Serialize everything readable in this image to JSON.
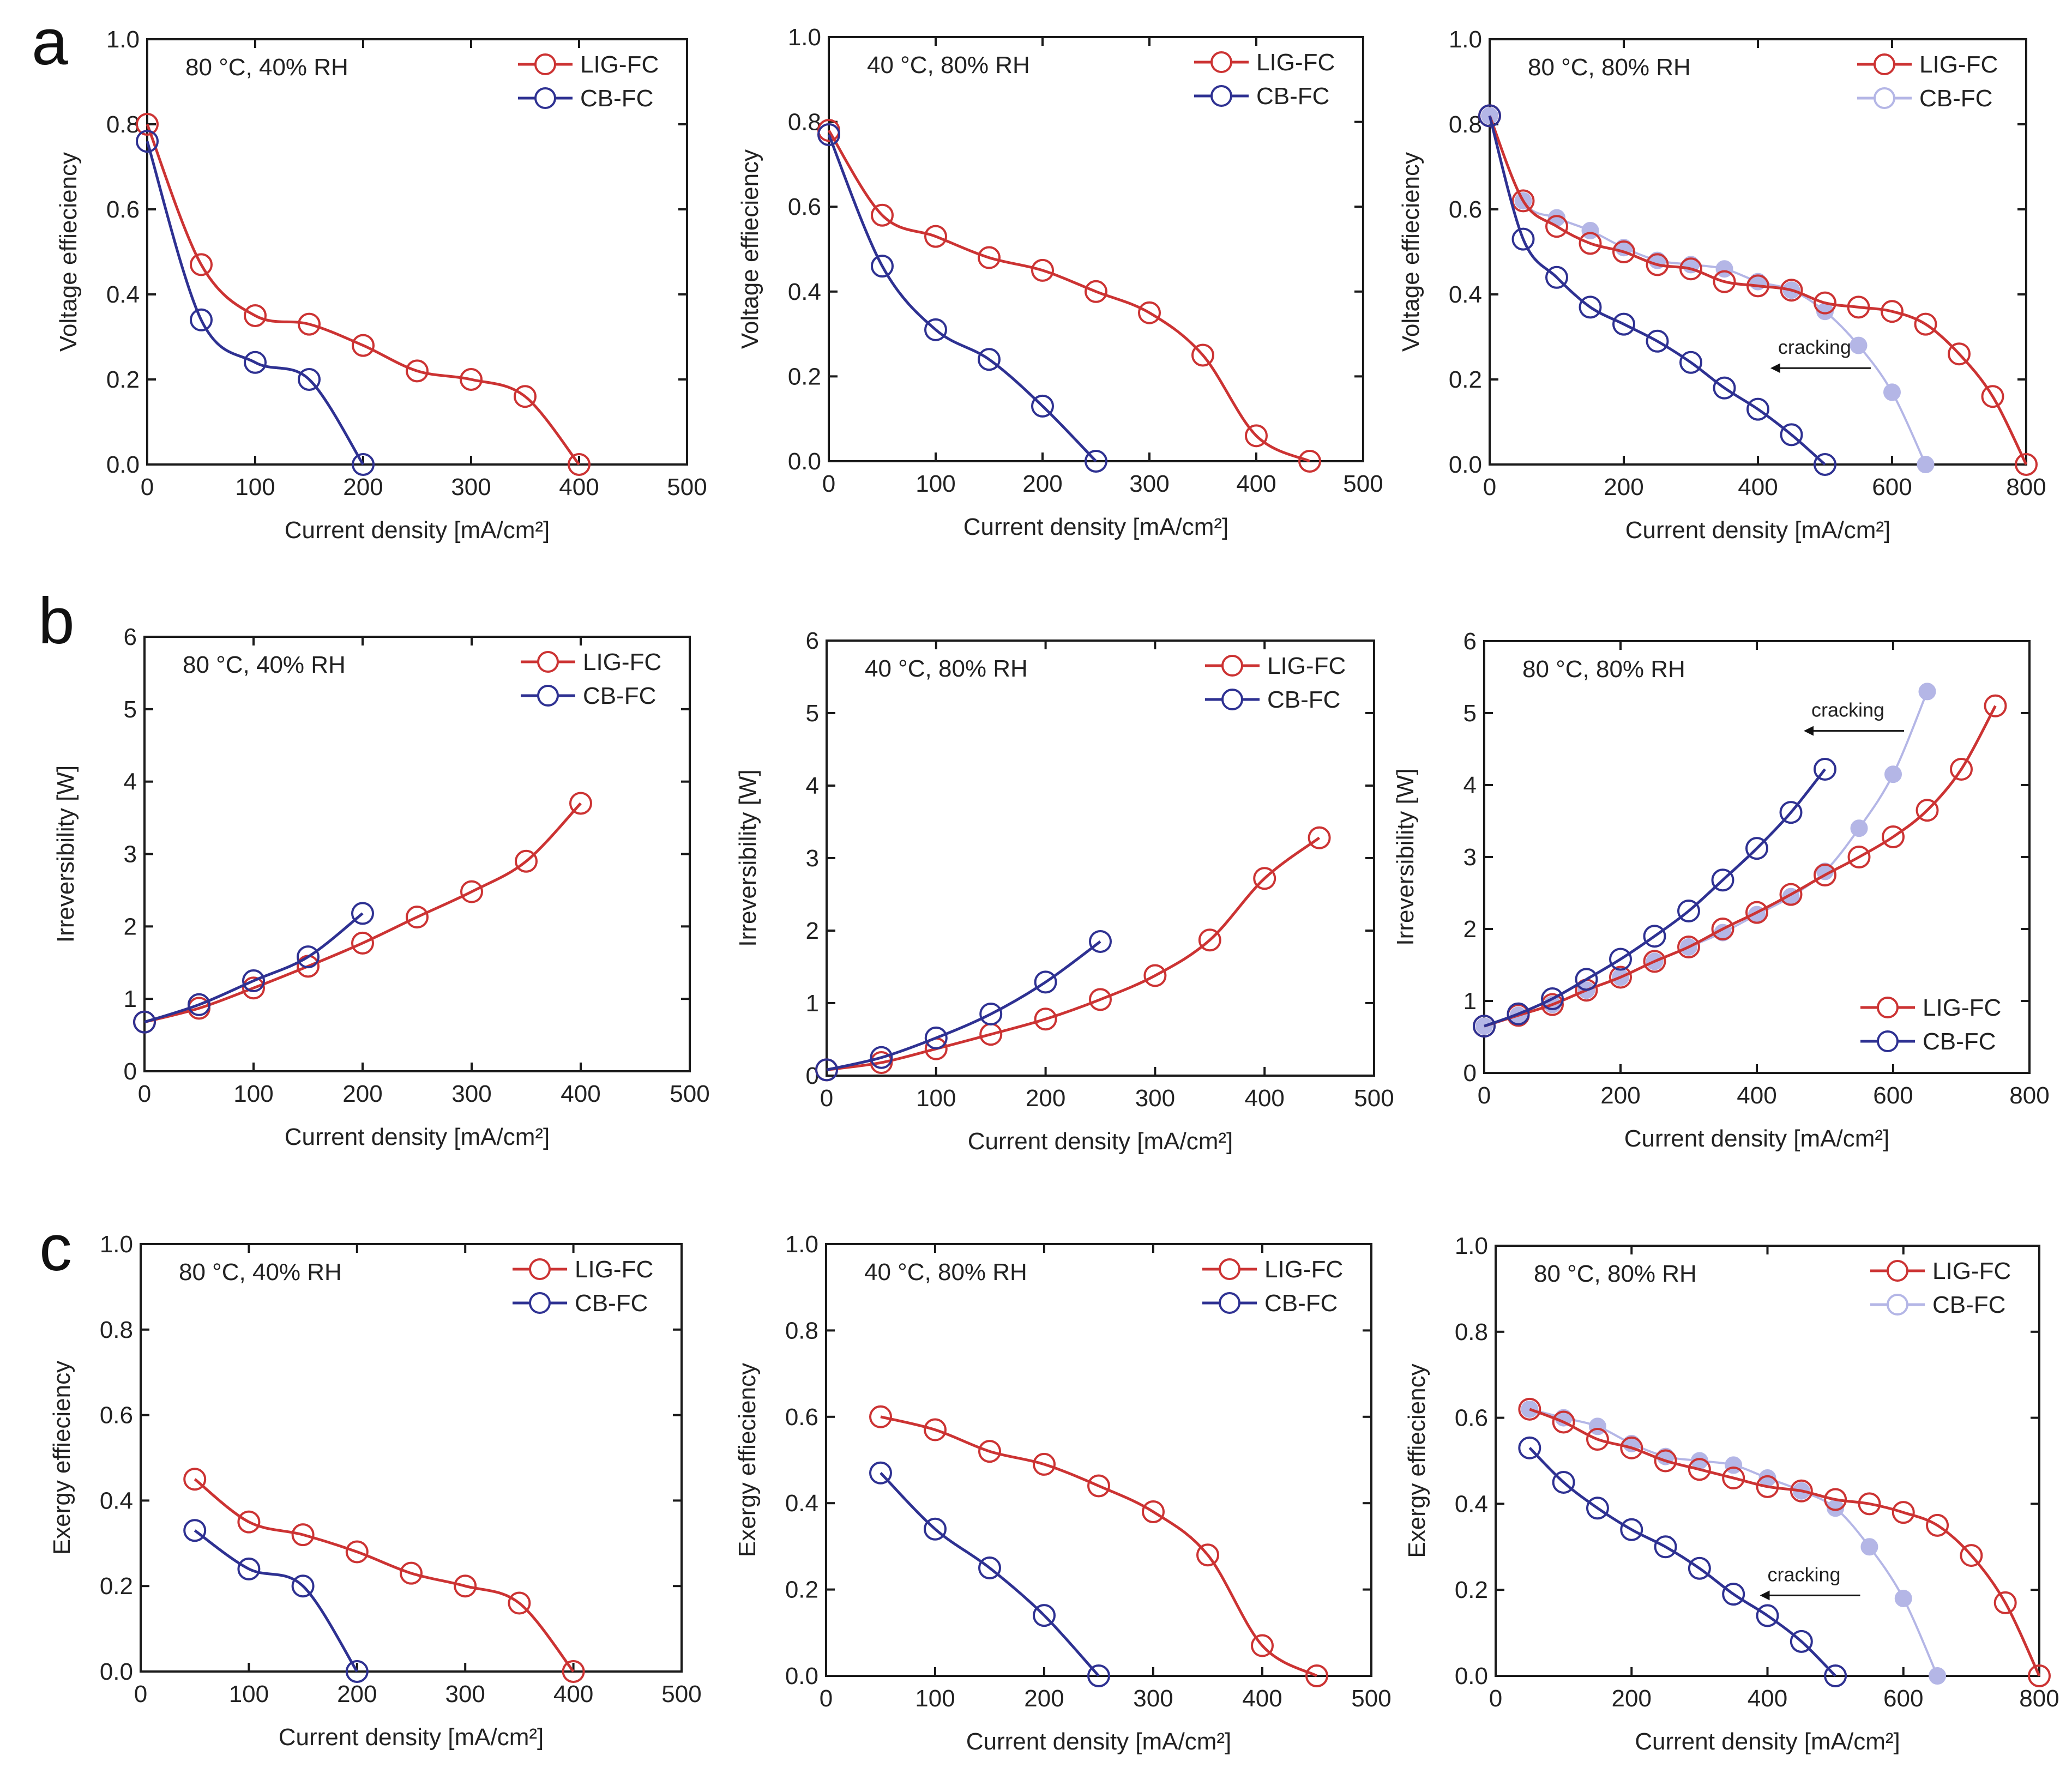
{
  "figure": {
    "row_letters": [
      "a",
      "b",
      "c"
    ],
    "colors": {
      "LIG-FC": "#cc3333",
      "CB-FC": "#2e3192",
      "CB-FC-faded": "#b4b6e6",
      "axis": "#1a1a1a"
    }
  },
  "chart_data": [
    {
      "id": "a1",
      "type": "line",
      "row": "a",
      "condition_label": "80 °C, 40% RH",
      "xlabel": "Current density [mA/cm²]",
      "ylabel": "Voltage effieciency",
      "xlim": [
        0,
        500
      ],
      "ylim": [
        0,
        1.0
      ],
      "xticks": [
        0,
        100,
        200,
        300,
        400,
        500
      ],
      "yticks": [
        0.0,
        0.2,
        0.4,
        0.6,
        0.8,
        1.0
      ],
      "ydec": 1,
      "legend": {
        "entries": [
          "LIG-FC",
          "CB-FC"
        ],
        "position": "top-right"
      },
      "series": [
        {
          "name": "LIG-FC",
          "x": [
            0,
            50,
            100,
            150,
            200,
            250,
            300,
            350,
            400
          ],
          "y": [
            0.8,
            0.47,
            0.35,
            0.33,
            0.28,
            0.22,
            0.2,
            0.16,
            0.0
          ]
        },
        {
          "name": "CB-FC",
          "x": [
            0,
            50,
            100,
            150,
            200
          ],
          "y": [
            0.76,
            0.34,
            0.24,
            0.2,
            0.0
          ]
        }
      ]
    },
    {
      "id": "a2",
      "type": "line",
      "row": "a",
      "condition_label": "40 °C, 80% RH",
      "xlabel": "Current density [mA/cm²]",
      "ylabel": "Voltage effieciency",
      "xlim": [
        0,
        500
      ],
      "ylim": [
        0,
        1.0
      ],
      "xticks": [
        0,
        100,
        200,
        300,
        400,
        500
      ],
      "yticks": [
        0.0,
        0.2,
        0.4,
        0.6,
        0.8,
        1.0
      ],
      "ydec": 1,
      "legend": {
        "entries": [
          "LIG-FC",
          "CB-FC"
        ],
        "position": "top-right"
      },
      "series": [
        {
          "name": "LIG-FC",
          "x": [
            0,
            50,
            100,
            150,
            200,
            250,
            300,
            350,
            400,
            450
          ],
          "y": [
            0.78,
            0.58,
            0.53,
            0.48,
            0.45,
            0.4,
            0.35,
            0.25,
            0.06,
            0.0
          ]
        },
        {
          "name": "CB-FC",
          "x": [
            0,
            50,
            100,
            150,
            200,
            250
          ],
          "y": [
            0.77,
            0.46,
            0.31,
            0.24,
            0.13,
            0.0
          ]
        }
      ]
    },
    {
      "id": "a3",
      "type": "line",
      "row": "a",
      "condition_label": "80 °C, 80% RH",
      "xlabel": "Current density [mA/cm²]",
      "ylabel": "Voltage effieciency",
      "xlim": [
        0,
        800
      ],
      "ylim": [
        0,
        1.0
      ],
      "xticks": [
        0,
        200,
        400,
        600,
        800
      ],
      "yticks": [
        0.0,
        0.2,
        0.4,
        0.6,
        0.8,
        1.0
      ],
      "ydec": 1,
      "legend": {
        "entries": [
          "LIG-FC",
          "CB-FC"
        ],
        "position": "top-right"
      },
      "annotation": {
        "text": "cracking",
        "arrow": "left"
      },
      "series": [
        {
          "name": "LIG-FC",
          "x": [
            0,
            50,
            100,
            150,
            200,
            250,
            300,
            350,
            400,
            450,
            500,
            550,
            600,
            650,
            700,
            750,
            800
          ],
          "y": [
            0.82,
            0.62,
            0.56,
            0.52,
            0.5,
            0.47,
            0.46,
            0.43,
            0.42,
            0.41,
            0.38,
            0.37,
            0.36,
            0.33,
            0.26,
            0.16,
            0.0
          ]
        },
        {
          "name": "CB-FC",
          "x": [
            0,
            50,
            100,
            150,
            200,
            250,
            300,
            350,
            400,
            450,
            500
          ],
          "y": [
            0.82,
            0.53,
            0.44,
            0.37,
            0.33,
            0.29,
            0.24,
            0.18,
            0.13,
            0.07,
            0.0
          ]
        },
        {
          "name": "CB-FC (pre-cracking)",
          "style": "faded",
          "x": [
            0,
            50,
            100,
            150,
            200,
            250,
            300,
            350,
            400,
            450,
            500,
            550,
            600,
            650
          ],
          "y": [
            0.82,
            0.62,
            0.58,
            0.55,
            0.51,
            0.48,
            0.47,
            0.46,
            0.43,
            0.41,
            0.36,
            0.28,
            0.17,
            0.0
          ]
        }
      ]
    },
    {
      "id": "b1",
      "type": "line",
      "row": "b",
      "condition_label": "80 °C, 40% RH",
      "xlabel": "Current density [mA/cm²]",
      "ylabel": "Irreversibility [W]",
      "xlim": [
        0,
        500
      ],
      "ylim": [
        0,
        6
      ],
      "xticks": [
        0,
        100,
        200,
        300,
        400,
        500
      ],
      "yticks": [
        0,
        1,
        2,
        3,
        4,
        5,
        6
      ],
      "ydec": 0,
      "legend": {
        "entries": [
          "LIG-FC",
          "CB-FC"
        ],
        "position": "top-right"
      },
      "series": [
        {
          "name": "LIG-FC",
          "x": [
            0,
            50,
            100,
            150,
            200,
            250,
            300,
            350,
            400
          ],
          "y": [
            0.68,
            0.87,
            1.15,
            1.45,
            1.77,
            2.13,
            2.48,
            2.9,
            3.7
          ]
        },
        {
          "name": "CB-FC",
          "x": [
            0,
            50,
            100,
            150,
            200
          ],
          "y": [
            0.68,
            0.92,
            1.25,
            1.58,
            2.18
          ]
        }
      ]
    },
    {
      "id": "b2",
      "type": "line",
      "row": "b",
      "condition_label": "40 °C, 80% RH",
      "xlabel": "Current density [mA/cm²]",
      "ylabel": "Irreversibility [W]",
      "xlim": [
        0,
        500
      ],
      "ylim": [
        0,
        6
      ],
      "xticks": [
        0,
        100,
        200,
        300,
        400,
        500
      ],
      "yticks": [
        0,
        1,
        2,
        3,
        4,
        5,
        6
      ],
      "ydec": 0,
      "legend": {
        "entries": [
          "LIG-FC",
          "CB-FC"
        ],
        "position": "top-right"
      },
      "series": [
        {
          "name": "LIG-FC",
          "x": [
            0,
            50,
            100,
            150,
            200,
            250,
            300,
            350,
            400,
            450
          ],
          "y": [
            0.08,
            0.18,
            0.37,
            0.57,
            0.78,
            1.05,
            1.38,
            1.87,
            2.72,
            3.28
          ]
        },
        {
          "name": "CB-FC",
          "x": [
            0,
            50,
            100,
            150,
            200,
            250
          ],
          "y": [
            0.08,
            0.25,
            0.52,
            0.85,
            1.29,
            1.85
          ]
        }
      ]
    },
    {
      "id": "b3",
      "type": "line",
      "row": "b",
      "condition_label": "80 °C, 80% RH",
      "xlabel": "Current density [mA/cm²]",
      "ylabel": "Irreversibility [W]",
      "xlim": [
        0,
        800
      ],
      "ylim": [
        0,
        6
      ],
      "xticks": [
        0,
        200,
        400,
        600,
        800
      ],
      "yticks": [
        0,
        1,
        2,
        3,
        4,
        5,
        6
      ],
      "ydec": 0,
      "legend": {
        "entries": [
          "LIG-FC",
          "CB-FC"
        ],
        "position": "bottom-right"
      },
      "annotation": {
        "text": "cracking",
        "arrow": "left"
      },
      "series": [
        {
          "name": "LIG-FC",
          "x": [
            0,
            50,
            100,
            150,
            200,
            250,
            300,
            350,
            400,
            450,
            500,
            550,
            600,
            650,
            700,
            750
          ],
          "y": [
            0.65,
            0.8,
            0.95,
            1.15,
            1.33,
            1.55,
            1.75,
            2.0,
            2.23,
            2.48,
            2.75,
            3.0,
            3.28,
            3.65,
            4.22,
            5.1
          ]
        },
        {
          "name": "CB-FC",
          "x": [
            0,
            50,
            100,
            150,
            200,
            250,
            300,
            350,
            400,
            450,
            500
          ],
          "y": [
            0.65,
            0.82,
            1.03,
            1.3,
            1.58,
            1.9,
            2.25,
            2.68,
            3.12,
            3.62,
            4.22
          ]
        },
        {
          "name": "CB-FC (pre-cracking)",
          "style": "faded",
          "x": [
            0,
            50,
            100,
            150,
            200,
            250,
            300,
            350,
            400,
            450,
            500,
            550,
            600,
            650
          ],
          "y": [
            0.65,
            0.8,
            0.95,
            1.15,
            1.33,
            1.55,
            1.75,
            1.95,
            2.2,
            2.45,
            2.8,
            3.4,
            4.15,
            5.3
          ]
        }
      ]
    },
    {
      "id": "c1",
      "type": "line",
      "row": "c",
      "condition_label": "80 °C, 40% RH",
      "xlabel": "Current density [mA/cm²]",
      "ylabel": "Exergy effieciency",
      "xlim": [
        0,
        500
      ],
      "ylim": [
        0,
        1.0
      ],
      "xticks": [
        0,
        100,
        200,
        300,
        400,
        500
      ],
      "yticks": [
        0.0,
        0.2,
        0.4,
        0.6,
        0.8,
        1.0
      ],
      "ydec": 1,
      "legend": {
        "entries": [
          "LIG-FC",
          "CB-FC"
        ],
        "position": "top-right"
      },
      "series": [
        {
          "name": "LIG-FC",
          "x": [
            50,
            100,
            150,
            200,
            250,
            300,
            350,
            400
          ],
          "y": [
            0.45,
            0.35,
            0.32,
            0.28,
            0.23,
            0.2,
            0.16,
            0.0
          ]
        },
        {
          "name": "CB-FC",
          "x": [
            50,
            100,
            150,
            200
          ],
          "y": [
            0.33,
            0.24,
            0.2,
            0.0
          ]
        }
      ]
    },
    {
      "id": "c2",
      "type": "line",
      "row": "c",
      "condition_label": "40 °C, 80% RH",
      "xlabel": "Current density [mA/cm²]",
      "ylabel": "Exergy effieciency",
      "xlim": [
        0,
        500
      ],
      "ylim": [
        0,
        1.0
      ],
      "xticks": [
        0,
        100,
        200,
        300,
        400,
        500
      ],
      "yticks": [
        0.0,
        0.2,
        0.4,
        0.6,
        0.8,
        1.0
      ],
      "ydec": 1,
      "legend": {
        "entries": [
          "LIG-FC",
          "CB-FC"
        ],
        "position": "top-right"
      },
      "series": [
        {
          "name": "LIG-FC",
          "x": [
            50,
            100,
            150,
            200,
            250,
            300,
            350,
            400,
            450
          ],
          "y": [
            0.6,
            0.57,
            0.52,
            0.49,
            0.44,
            0.38,
            0.28,
            0.07,
            0.0
          ]
        },
        {
          "name": "CB-FC",
          "x": [
            50,
            100,
            150,
            200,
            250
          ],
          "y": [
            0.47,
            0.34,
            0.25,
            0.14,
            0.0
          ]
        }
      ]
    },
    {
      "id": "c3",
      "type": "line",
      "row": "c",
      "condition_label": "80 °C, 80% RH",
      "xlabel": "Current density [mA/cm²]",
      "ylabel": "Exergy effieciency",
      "xlim": [
        0,
        800
      ],
      "ylim": [
        0,
        1.0
      ],
      "xticks": [
        0,
        200,
        400,
        600,
        800
      ],
      "yticks": [
        0.0,
        0.2,
        0.4,
        0.6,
        0.8,
        1.0
      ],
      "ydec": 1,
      "legend": {
        "entries": [
          "LIG-FC",
          "CB-FC"
        ],
        "position": "top-right"
      },
      "annotation": {
        "text": "cracking",
        "arrow": "left"
      },
      "series": [
        {
          "name": "LIG-FC",
          "x": [
            50,
            100,
            150,
            200,
            250,
            300,
            350,
            400,
            450,
            500,
            550,
            600,
            650,
            700,
            750,
            800
          ],
          "y": [
            0.62,
            0.59,
            0.55,
            0.53,
            0.5,
            0.48,
            0.46,
            0.44,
            0.43,
            0.41,
            0.4,
            0.38,
            0.35,
            0.28,
            0.17,
            0.0
          ]
        },
        {
          "name": "CB-FC",
          "x": [
            50,
            100,
            150,
            200,
            250,
            300,
            350,
            400,
            450,
            500
          ],
          "y": [
            0.53,
            0.45,
            0.39,
            0.34,
            0.3,
            0.25,
            0.19,
            0.14,
            0.08,
            0.0
          ]
        },
        {
          "name": "CB-FC (pre-cracking)",
          "style": "faded",
          "x": [
            50,
            100,
            150,
            200,
            250,
            300,
            350,
            400,
            450,
            500,
            550,
            600,
            650
          ],
          "y": [
            0.62,
            0.6,
            0.58,
            0.54,
            0.51,
            0.5,
            0.49,
            0.46,
            0.43,
            0.39,
            0.3,
            0.18,
            0.0
          ]
        }
      ]
    }
  ]
}
